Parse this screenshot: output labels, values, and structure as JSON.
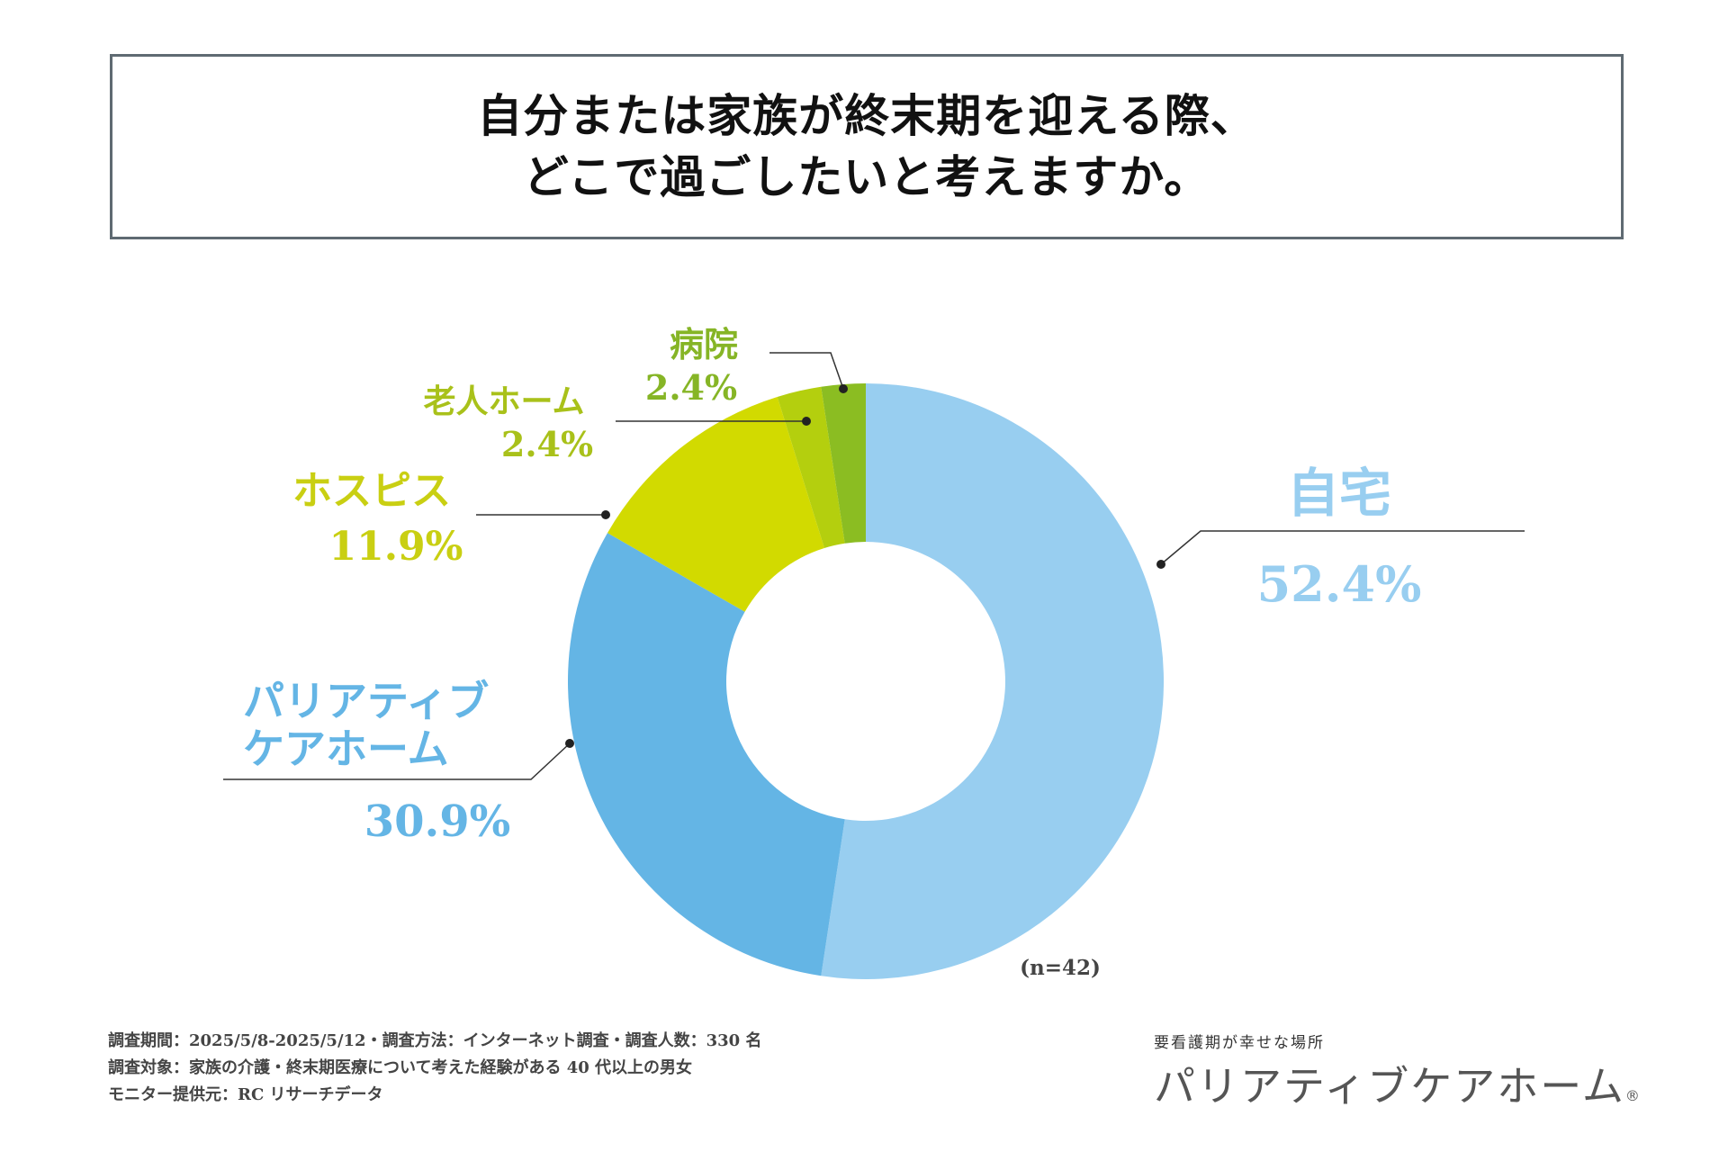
{
  "title": {
    "line1": "自分または家族が終末期を迎える際、",
    "line2": "どこで過ごしたいと考えますか。"
  },
  "chart_data": {
    "type": "pie",
    "variant": "donut",
    "sample_note": "(n=42)",
    "slices": [
      {
        "name": "自宅",
        "value": 52.4,
        "label_pct": "52.4%",
        "color": "#98cef0",
        "label_color": "#98cef0"
      },
      {
        "name_lines": [
          "パリアティブ",
          "ケアホーム"
        ],
        "value": 30.9,
        "label_pct": "30.9%",
        "color": "#64b5e5",
        "label_color": "#64b5e5"
      },
      {
        "name": "ホスピス",
        "value": 11.9,
        "label_pct": "11.9%",
        "color": "#d2da00",
        "label_color": "#c9cf12"
      },
      {
        "name": "老人ホーム",
        "value": 2.4,
        "label_pct": "2.4%",
        "color": "#b4cf0e",
        "label_color": "#a9c11a"
      },
      {
        "name": "病院",
        "value": 2.4,
        "label_pct": "2.4%",
        "color": "#8bbd22",
        "label_color": "#86b526"
      }
    ]
  },
  "footer": {
    "line1": "調査期間：2025/5/8-2025/5/12・調査方法：インターネット調査・調査人数：330 名",
    "line2": "調査対象：家族の介護・終末期医療について考えた経験がある 40 代以上の男女",
    "line3": "モニター提供元：RC リサーチデータ"
  },
  "brand": {
    "tagline": "要看護期が幸せな場所",
    "name": "パリアティブケアホーム",
    "mark": "®"
  }
}
